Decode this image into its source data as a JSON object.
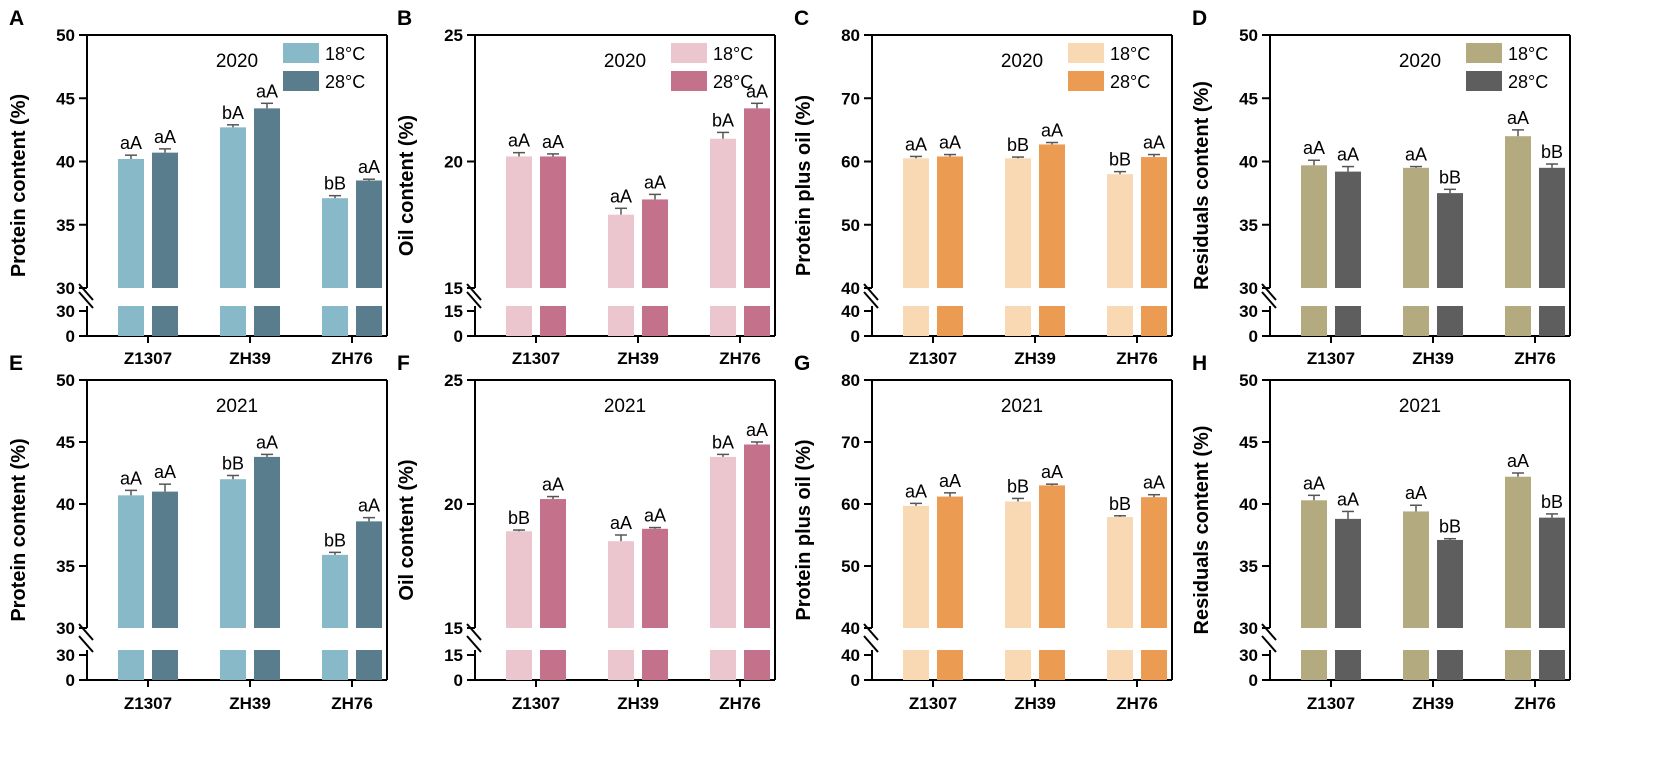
{
  "chart_data": [
    {
      "panel": "A",
      "type": "bar",
      "year": "2020",
      "ylabel": "Protein content (%)",
      "ylim": [
        30,
        50
      ],
      "yticks": [
        30,
        35,
        40,
        45,
        50
      ],
      "break_low": [
        0,
        30
      ],
      "break_low_ticks": [
        0,
        30
      ],
      "categories": [
        "Z1307",
        "ZH39",
        "ZH76"
      ],
      "legend": [
        "18°C",
        "28°C"
      ],
      "show_legend": true,
      "colors": [
        "#88b9c9",
        "#5a7d8d"
      ],
      "series": [
        {
          "name": "18°C",
          "values": [
            40.2,
            42.7,
            37.1
          ],
          "err": [
            0.3,
            0.2,
            0.2
          ],
          "labels": [
            "aA",
            "bA",
            "bB"
          ]
        },
        {
          "name": "28°C",
          "values": [
            40.7,
            44.2,
            38.5
          ],
          "err": [
            0.3,
            0.4,
            0.1
          ],
          "labels": [
            "aA",
            "aA",
            "aA"
          ]
        }
      ]
    },
    {
      "panel": "B",
      "type": "bar",
      "year": "2020",
      "ylabel": "Oil content (%)",
      "ylim": [
        15,
        25
      ],
      "yticks": [
        15,
        20,
        25
      ],
      "break_low": [
        0,
        15
      ],
      "break_low_ticks": [
        0,
        15
      ],
      "categories": [
        "Z1307",
        "ZH39",
        "ZH76"
      ],
      "legend": [
        "18°C",
        "28°C"
      ],
      "show_legend": true,
      "colors": [
        "#ebc6cf",
        "#c4718b"
      ],
      "series": [
        {
          "name": "18°C",
          "values": [
            20.2,
            17.9,
            20.9
          ],
          "err": [
            0.15,
            0.25,
            0.25
          ],
          "labels": [
            "aA",
            "aA",
            "bA"
          ]
        },
        {
          "name": "28°C",
          "values": [
            20.2,
            18.5,
            22.1
          ],
          "err": [
            0.1,
            0.2,
            0.2
          ],
          "labels": [
            "aA",
            "aA",
            "aA"
          ]
        }
      ]
    },
    {
      "panel": "C",
      "type": "bar",
      "year": "2020",
      "ylabel": "Protein plus oil (%)",
      "ylim": [
        40,
        80
      ],
      "yticks": [
        40,
        50,
        60,
        70,
        80
      ],
      "break_low": [
        0,
        40
      ],
      "break_low_ticks": [
        0,
        40
      ],
      "categories": [
        "Z1307",
        "ZH39",
        "ZH76"
      ],
      "legend": [
        "18°C",
        "28°C"
      ],
      "show_legend": true,
      "colors": [
        "#f9d8b4",
        "#ec9b53"
      ],
      "series": [
        {
          "name": "18°C",
          "values": [
            60.5,
            60.5,
            58.0
          ],
          "err": [
            0.3,
            0.2,
            0.4
          ],
          "labels": [
            "aA",
            "bB",
            "bB"
          ]
        },
        {
          "name": "28°C",
          "values": [
            60.8,
            62.7,
            60.7
          ],
          "err": [
            0.3,
            0.3,
            0.4
          ],
          "labels": [
            "aA",
            "aA",
            "aA"
          ]
        }
      ]
    },
    {
      "panel": "D",
      "type": "bar",
      "year": "2020",
      "ylabel": "Residuals content (%)",
      "ylim": [
        30,
        50
      ],
      "yticks": [
        30,
        35,
        40,
        45,
        50
      ],
      "break_low": [
        0,
        30
      ],
      "break_low_ticks": [
        0,
        30
      ],
      "categories": [
        "Z1307",
        "ZH39",
        "ZH76"
      ],
      "legend": [
        "18°C",
        "28°C"
      ],
      "show_legend": true,
      "colors": [
        "#b3aa7f",
        "#5e5e5e"
      ],
      "series": [
        {
          "name": "18°C",
          "values": [
            39.7,
            39.5,
            42.0
          ],
          "err": [
            0.4,
            0.1,
            0.5
          ],
          "labels": [
            "aA",
            "aA",
            "aA"
          ]
        },
        {
          "name": "28°C",
          "values": [
            39.2,
            37.5,
            39.5
          ],
          "err": [
            0.4,
            0.3,
            0.3
          ],
          "labels": [
            "aA",
            "bB",
            "bB"
          ]
        }
      ]
    },
    {
      "panel": "E",
      "type": "bar",
      "year": "2021",
      "ylabel": "Protein content (%)",
      "ylim": [
        30,
        50
      ],
      "yticks": [
        30,
        35,
        40,
        45,
        50
      ],
      "break_low": [
        0,
        30
      ],
      "break_low_ticks": [
        0,
        30
      ],
      "categories": [
        "Z1307",
        "ZH39",
        "ZH76"
      ],
      "legend": [
        "18°C",
        "28°C"
      ],
      "show_legend": false,
      "colors": [
        "#88b9c9",
        "#5a7d8d"
      ],
      "series": [
        {
          "name": "18°C",
          "values": [
            40.7,
            42.0,
            35.9
          ],
          "err": [
            0.4,
            0.3,
            0.2
          ],
          "labels": [
            "aA",
            "bB",
            "bB"
          ]
        },
        {
          "name": "28°C",
          "values": [
            41.0,
            43.8,
            38.6
          ],
          "err": [
            0.6,
            0.2,
            0.3
          ],
          "labels": [
            "aA",
            "aA",
            "aA"
          ]
        }
      ]
    },
    {
      "panel": "F",
      "type": "bar",
      "year": "2021",
      "ylabel": "Oil content (%)",
      "ylim": [
        15,
        25
      ],
      "yticks": [
        15,
        20,
        25
      ],
      "break_low": [
        0,
        15
      ],
      "break_low_ticks": [
        0,
        15
      ],
      "categories": [
        "Z1307",
        "ZH39",
        "ZH76"
      ],
      "legend": [
        "18°C",
        "28°C"
      ],
      "show_legend": false,
      "colors": [
        "#ebc6cf",
        "#c4718b"
      ],
      "series": [
        {
          "name": "18°C",
          "values": [
            18.9,
            18.5,
            21.9
          ],
          "err": [
            0.05,
            0.25,
            0.1
          ],
          "labels": [
            "bB",
            "aA",
            "bA"
          ]
        },
        {
          "name": "28°C",
          "values": [
            20.2,
            19.0,
            22.4
          ],
          "err": [
            0.1,
            0.05,
            0.1
          ],
          "labels": [
            "aA",
            "aA",
            "aA"
          ]
        }
      ]
    },
    {
      "panel": "G",
      "type": "bar",
      "year": "2021",
      "ylabel": "Protein plus oil (%)",
      "ylim": [
        40,
        80
      ],
      "yticks": [
        40,
        50,
        60,
        70,
        80
      ],
      "break_low": [
        0,
        40
      ],
      "break_low_ticks": [
        0,
        40
      ],
      "categories": [
        "Z1307",
        "ZH39",
        "ZH76"
      ],
      "legend": [
        "18°C",
        "28°C"
      ],
      "show_legend": false,
      "colors": [
        "#f9d8b4",
        "#ec9b53"
      ],
      "series": [
        {
          "name": "18°C",
          "values": [
            59.7,
            60.4,
            57.9
          ],
          "err": [
            0.4,
            0.5,
            0.2
          ],
          "labels": [
            "aA",
            "bB",
            "bB"
          ]
        },
        {
          "name": "28°C",
          "values": [
            61.2,
            63.0,
            61.1
          ],
          "err": [
            0.6,
            0.2,
            0.4
          ],
          "labels": [
            "aA",
            "aA",
            "aA"
          ]
        }
      ]
    },
    {
      "panel": "H",
      "type": "bar",
      "year": "2021",
      "ylabel": "Residuals content (%)",
      "ylim": [
        30,
        50
      ],
      "yticks": [
        30,
        35,
        40,
        45,
        50
      ],
      "break_low": [
        0,
        30
      ],
      "break_low_ticks": [
        0,
        30
      ],
      "categories": [
        "Z1307",
        "ZH39",
        "ZH76"
      ],
      "legend": [
        "18°C",
        "28°C"
      ],
      "show_legend": false,
      "colors": [
        "#b3aa7f",
        "#5e5e5e"
      ],
      "series": [
        {
          "name": "18°C",
          "values": [
            40.3,
            39.4,
            42.2
          ],
          "err": [
            0.4,
            0.5,
            0.3
          ],
          "labels": [
            "aA",
            "aA",
            "aA"
          ]
        },
        {
          "name": "28°C",
          "values": [
            38.8,
            37.1,
            38.9
          ],
          "err": [
            0.6,
            0.1,
            0.3
          ],
          "labels": [
            "aA",
            "bB",
            "bB"
          ]
        }
      ]
    }
  ]
}
